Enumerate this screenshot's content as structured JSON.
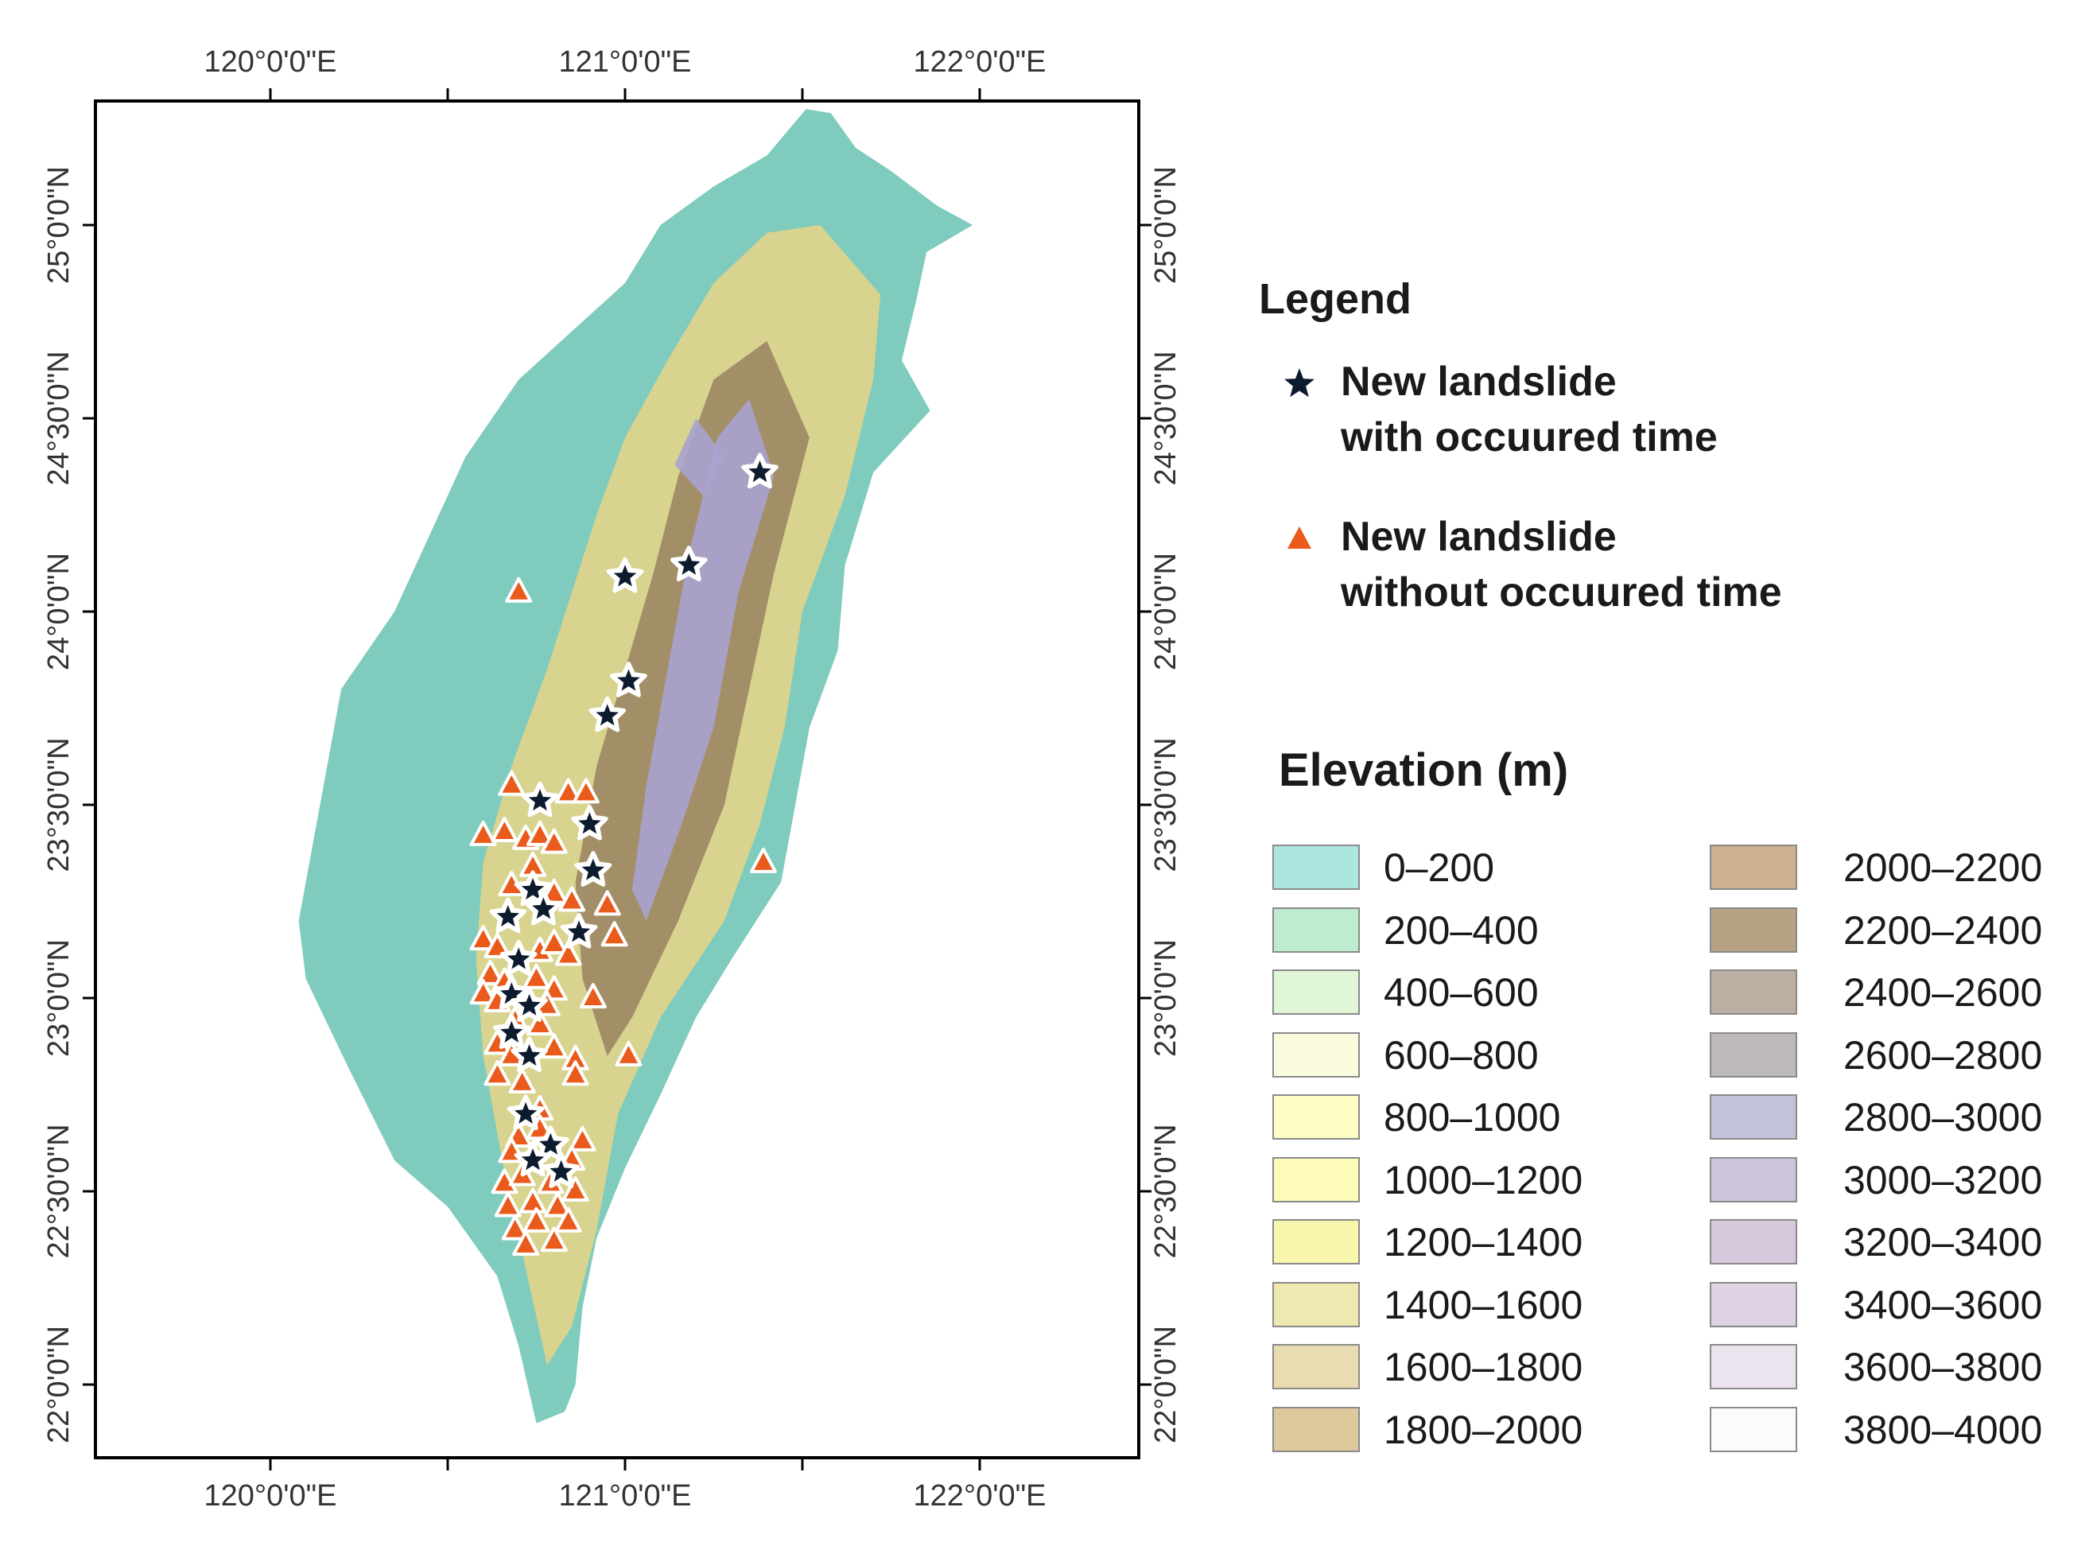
{
  "map": {
    "top_longitude_labels": [
      "120°0'0\"E",
      "121°0'0\"E",
      "122°0'0\"E"
    ],
    "bottom_longitude_labels": [
      "120°0'0\"E",
      "121°0'0\"E",
      "122°0'0\"E"
    ],
    "left_latitude_labels": [
      "25°0'0\"N",
      "24°30'0\"N",
      "24°0'0\"N",
      "23°30'0\"N",
      "23°0'0\"N",
      "22°30'0\"N",
      "22°0'0\"N"
    ],
    "right_latitude_labels": [
      "25°0'0\"N",
      "24°30'0\"N",
      "24°0'0\"N",
      "23°30'0\"N",
      "23°0'0\"N",
      "22°30'0\"N",
      "22°0'0\"N"
    ],
    "colors": {
      "lowland": "#7fcbbd",
      "hills": "#d8d48f",
      "mountain": "#9a8260",
      "peak": "#a9a3cf",
      "star": "#0d1b2e",
      "triangle": "#ea5a1a",
      "marker_halo": "#ffffff"
    },
    "new_landslides_with_time": [
      [
        121.38,
        24.36
      ],
      [
        121.18,
        24.12
      ],
      [
        121.0,
        24.09
      ],
      [
        121.01,
        23.82
      ],
      [
        120.95,
        23.73
      ],
      [
        120.76,
        23.51
      ],
      [
        120.9,
        23.45
      ],
      [
        120.91,
        23.33
      ],
      [
        120.74,
        23.28
      ],
      [
        120.77,
        23.23
      ],
      [
        120.67,
        23.21
      ],
      [
        120.87,
        23.17
      ],
      [
        120.7,
        23.1
      ],
      [
        120.68,
        23.01
      ],
      [
        120.73,
        22.98
      ],
      [
        120.68,
        22.91
      ],
      [
        120.73,
        22.85
      ],
      [
        120.72,
        22.7
      ],
      [
        120.79,
        22.62
      ],
      [
        120.74,
        22.58
      ],
      [
        120.82,
        22.55
      ]
    ],
    "new_landslides_without_time": [
      [
        120.7,
        24.05
      ],
      [
        120.68,
        23.55
      ],
      [
        120.84,
        23.53
      ],
      [
        120.89,
        23.53
      ],
      [
        120.6,
        23.42
      ],
      [
        120.66,
        23.43
      ],
      [
        120.72,
        23.41
      ],
      [
        120.76,
        23.42
      ],
      [
        120.8,
        23.4
      ],
      [
        121.39,
        23.35
      ],
      [
        120.74,
        23.34
      ],
      [
        120.68,
        23.29
      ],
      [
        120.8,
        23.27
      ],
      [
        120.85,
        23.25
      ],
      [
        120.95,
        23.24
      ],
      [
        120.6,
        23.15
      ],
      [
        120.64,
        23.13
      ],
      [
        120.76,
        23.12
      ],
      [
        120.8,
        23.14
      ],
      [
        120.84,
        23.11
      ],
      [
        120.97,
        23.16
      ],
      [
        120.62,
        23.06
      ],
      [
        120.66,
        23.04
      ],
      [
        120.75,
        23.05
      ],
      [
        120.8,
        23.02
      ],
      [
        120.6,
        23.01
      ],
      [
        120.64,
        22.99
      ],
      [
        120.78,
        22.98
      ],
      [
        120.91,
        23.0
      ],
      [
        120.69,
        22.94
      ],
      [
        120.76,
        22.93
      ],
      [
        120.64,
        22.88
      ],
      [
        120.68,
        22.85
      ],
      [
        120.8,
        22.87
      ],
      [
        120.86,
        22.84
      ],
      [
        121.01,
        22.85
      ],
      [
        120.64,
        22.8
      ],
      [
        120.71,
        22.78
      ],
      [
        120.86,
        22.8
      ],
      [
        120.76,
        22.71
      ],
      [
        120.7,
        22.64
      ],
      [
        120.76,
        22.66
      ],
      [
        120.88,
        22.63
      ],
      [
        120.68,
        22.6
      ],
      [
        120.85,
        22.58
      ],
      [
        120.66,
        22.52
      ],
      [
        120.71,
        22.54
      ],
      [
        120.79,
        22.52
      ],
      [
        120.86,
        22.5
      ],
      [
        120.67,
        22.46
      ],
      [
        120.74,
        22.47
      ],
      [
        120.81,
        22.46
      ],
      [
        120.69,
        22.4
      ],
      [
        120.75,
        22.42
      ],
      [
        120.84,
        22.42
      ],
      [
        120.72,
        22.36
      ],
      [
        120.8,
        22.37
      ]
    ]
  },
  "legend": {
    "title": "Legend",
    "star_label": [
      "New landslide",
      "with occuured time"
    ],
    "triangle_label": [
      "New landslide",
      "without occuured time"
    ]
  },
  "elevation": {
    "title": "Elevation (m)",
    "classes": [
      {
        "label": "0–200",
        "color": "#ade6df"
      },
      {
        "label": "200–400",
        "color": "#bdeccf"
      },
      {
        "label": "400–600",
        "color": "#dff7d6"
      },
      {
        "label": "600–800",
        "color": "#fbfbde"
      },
      {
        "label": "800–1000",
        "color": "#fdfdc6"
      },
      {
        "label": "1000–1200",
        "color": "#fdfdb9"
      },
      {
        "label": "1200–1400",
        "color": "#f8f5ad"
      },
      {
        "label": "1400–1600",
        "color": "#efe8b0"
      },
      {
        "label": "1600–1800",
        "color": "#e9dcb1"
      },
      {
        "label": "1800–2000",
        "color": "#ddc99b"
      },
      {
        "label": "2000–2200",
        "color": "#cdb08e"
      },
      {
        "label": "2200–2400",
        "color": "#b8a286"
      },
      {
        "label": "2400–2600",
        "color": "#bcaea0"
      },
      {
        "label": "2600–2800",
        "color": "#bdb8bb"
      },
      {
        "label": "2800–3000",
        "color": "#c3c2db"
      },
      {
        "label": "3000–3200",
        "color": "#cdc5dc"
      },
      {
        "label": "3200–3400",
        "color": "#d7c9dd"
      },
      {
        "label": "3400–3600",
        "color": "#ded3e2"
      },
      {
        "label": "3600–3800",
        "color": "#ebe4ee"
      },
      {
        "label": "3800–4000",
        "color": "#fbfbfd"
      }
    ]
  }
}
